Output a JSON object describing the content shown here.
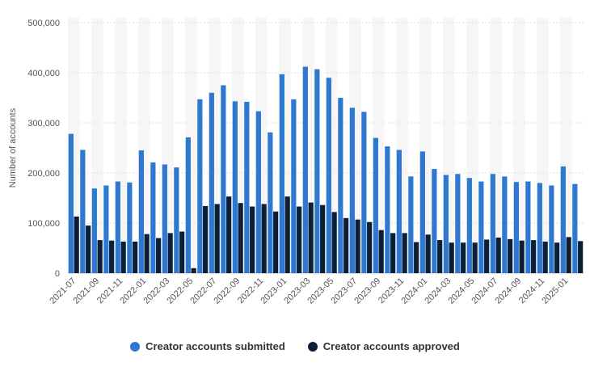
{
  "chart_data": {
    "type": "bar",
    "title": "",
    "xlabel": "",
    "ylabel": "Number of accounts",
    "ylim": [
      0,
      500000
    ],
    "yticks": [
      "0",
      "100,000",
      "200,000",
      "300,000",
      "400,000",
      "500,000"
    ],
    "ytick_values": [
      0,
      100000,
      200000,
      300000,
      400000,
      500000
    ],
    "categories": [
      "2021-07",
      "2021-08",
      "2021-09",
      "2021-10",
      "2021-11",
      "2021-12",
      "2022-01",
      "2022-02",
      "2022-03",
      "2022-04",
      "2022-05",
      "2022-06",
      "2022-07",
      "2022-08",
      "2022-09",
      "2022-10",
      "2022-11",
      "2022-12",
      "2023-01",
      "2023-02",
      "2023-03",
      "2023-04",
      "2023-05",
      "2023-06",
      "2023-07",
      "2023-08",
      "2023-09",
      "2023-10",
      "2023-11",
      "2023-12",
      "2024-01",
      "2024-02",
      "2024-03",
      "2024-04",
      "2024-05",
      "2024-06",
      "2024-07",
      "2024-08",
      "2024-09",
      "2024-10",
      "2024-11",
      "2024-12",
      "2025-01",
      "2025-02"
    ],
    "xtick_labels": [
      "2021-07",
      "2021-09",
      "2021-11",
      "2022-01",
      "2022-03",
      "2022-05",
      "2022-07",
      "2022-09",
      "2022-11",
      "2023-01",
      "2023-03",
      "2023-05",
      "2023-07",
      "2023-09",
      "2023-11",
      "2024-01",
      "2024-03",
      "2024-05",
      "2024-07",
      "2024-09",
      "2024-11",
      "2025-01"
    ],
    "series": [
      {
        "name": "Creator accounts submitted",
        "color": "#2f78d2",
        "values": [
          278000,
          246000,
          169000,
          175000,
          183000,
          181000,
          245000,
          221000,
          217000,
          211000,
          271000,
          347000,
          360000,
          375000,
          343000,
          342000,
          323000,
          281000,
          397000,
          347000,
          412000,
          407000,
          390000,
          350000,
          330000,
          322000,
          270000,
          253000,
          246000,
          193000,
          243000,
          208000,
          196000,
          198000,
          190000,
          183000,
          198000,
          193000,
          182000,
          183000,
          180000,
          175000,
          213000,
          178000
        ]
      },
      {
        "name": "Creator accounts approved",
        "color": "#0b1f38",
        "values": [
          113000,
          95000,
          66000,
          65000,
          63000,
          63000,
          78000,
          70000,
          80000,
          83000,
          10000,
          134000,
          138000,
          153000,
          140000,
          133000,
          138000,
          123000,
          153000,
          133000,
          141000,
          136000,
          122000,
          110000,
          107000,
          102000,
          86000,
          80000,
          80000,
          62000,
          77000,
          66000,
          61000,
          61000,
          61000,
          67000,
          71000,
          68000,
          65000,
          66000,
          63000,
          61000,
          72000,
          64000
        ]
      }
    ],
    "legend_position": "bottom-center",
    "grid": true
  },
  "legend": {
    "items": [
      {
        "label": "Creator accounts submitted",
        "color": "#2f78d2"
      },
      {
        "label": "Creator accounts approved",
        "color": "#0b1f38"
      }
    ]
  }
}
